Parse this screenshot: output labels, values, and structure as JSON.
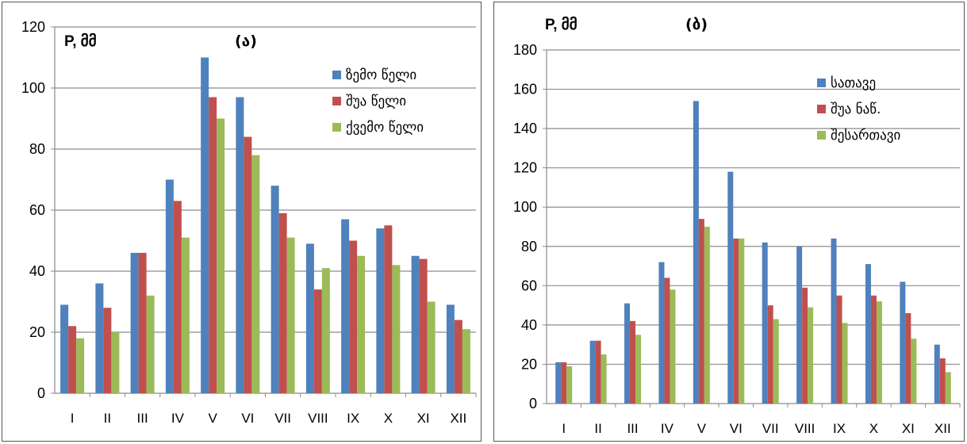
{
  "colors": {
    "series1": "#4f81bd",
    "series2": "#c0504d",
    "series3": "#9bbb59",
    "grid": "#8c8c8c",
    "axis": "#8c8c8c"
  },
  "chart_data": [
    {
      "type": "bar",
      "title": "(ა)",
      "ylabel": "P, მმ",
      "ylim": [
        0,
        120
      ],
      "yticks": [
        0,
        20,
        40,
        60,
        80,
        100,
        120
      ],
      "grid": true,
      "legend_position": "top-right",
      "categories": [
        "I",
        "II",
        "III",
        "IV",
        "V",
        "VI",
        "VII",
        "VIII",
        "IX",
        "X",
        "XI",
        "XII"
      ],
      "series": [
        {
          "name": "ზემო წელი",
          "values": [
            29,
            36,
            46,
            70,
            110,
            97,
            68,
            49,
            57,
            54,
            45,
            29
          ]
        },
        {
          "name": "შუა წელი",
          "values": [
            22,
            28,
            46,
            63,
            97,
            84,
            59,
            34,
            50,
            55,
            44,
            24
          ]
        },
        {
          "name": "ქვემო წელი",
          "values": [
            18,
            20,
            32,
            51,
            90,
            78,
            51,
            41,
            45,
            42,
            30,
            21
          ]
        }
      ]
    },
    {
      "type": "bar",
      "title": "(ბ)",
      "ylabel": "P, მმ",
      "ylim": [
        0,
        180
      ],
      "yticks": [
        0,
        20,
        40,
        60,
        80,
        100,
        120,
        140,
        160,
        180
      ],
      "grid": true,
      "legend_position": "top-right",
      "categories": [
        "I",
        "II",
        "III",
        "IV",
        "V",
        "VI",
        "VII",
        "VIII",
        "IX",
        "X",
        "XI",
        "XII"
      ],
      "series": [
        {
          "name": "სათავე",
          "values": [
            21,
            32,
            51,
            72,
            154,
            118,
            82,
            80,
            84,
            71,
            62,
            30
          ]
        },
        {
          "name": "შუა ნაწ.",
          "values": [
            21,
            32,
            42,
            64,
            94,
            84,
            50,
            59,
            55,
            55,
            46,
            23
          ]
        },
        {
          "name": "შესართავი",
          "values": [
            19,
            25,
            35,
            58,
            90,
            84,
            43,
            49,
            41,
            52,
            33,
            16
          ]
        }
      ]
    }
  ]
}
